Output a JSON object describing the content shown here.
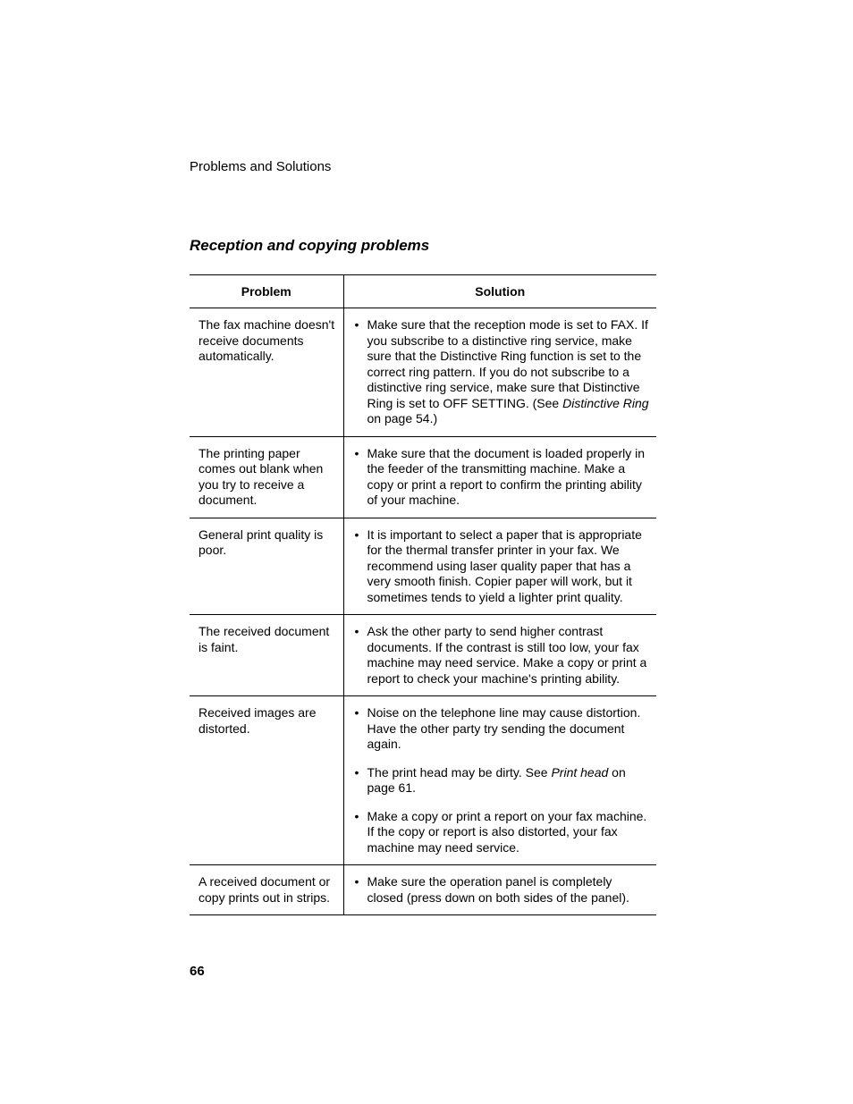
{
  "breadcrumb": "Problems and Solutions",
  "section_title": "Reception and copying problems",
  "page_number": "66",
  "table": {
    "headers": {
      "problem": "Problem",
      "solution": "Solution"
    },
    "rows": [
      {
        "problem": "The fax machine doesn't receive documents automatically.",
        "solutions": [
          {
            "segments": [
              {
                "text": "Make sure that the reception mode is set to FAX. If you subscribe to a distinctive ring service, make sure that the Distinctive Ring function is set to the correct ring pattern. If you do not subscribe to a distinctive ring service, make sure that Distinctive Ring is set to OFF SETTING. (See "
              },
              {
                "text": "Distinctive Ring",
                "italic": true
              },
              {
                "text": " on page 54.)"
              }
            ]
          }
        ]
      },
      {
        "problem": "The printing paper comes out blank when you try to receive a document.",
        "solutions": [
          {
            "segments": [
              {
                "text": "Make sure that the document is loaded properly in the feeder of the transmitting machine. Make a copy or print a report to confirm the printing ability of your machine."
              }
            ]
          }
        ]
      },
      {
        "problem": "General print quality is poor.",
        "solutions": [
          {
            "segments": [
              {
                "text": "It is important to select a paper that is appropriate for the thermal transfer printer in your fax. We recommend using laser quality paper that has a very smooth finish. Copier paper will work, but it sometimes tends to yield a lighter print quality."
              }
            ]
          }
        ]
      },
      {
        "problem": "The received document is faint.",
        "solutions": [
          {
            "segments": [
              {
                "text": "Ask the other party to send higher contrast documents. If the contrast is still too low, your fax machine may need service. Make a copy or print a report to check your machine's printing ability."
              }
            ]
          }
        ]
      },
      {
        "problem": "Received images are distorted.",
        "solutions": [
          {
            "segments": [
              {
                "text": "Noise on the telephone line may cause distortion. Have the other party try sending the document again."
              }
            ]
          },
          {
            "segments": [
              {
                "text": "The print head may be dirty. See "
              },
              {
                "text": "Print head",
                "italic": true
              },
              {
                "text": " on page 61."
              }
            ]
          },
          {
            "segments": [
              {
                "text": "Make a copy or print a report on your fax machine. If the copy or report is also distorted, your fax machine may need service."
              }
            ]
          }
        ]
      },
      {
        "problem": "A received document or copy prints out in strips.",
        "solutions": [
          {
            "segments": [
              {
                "text": "Make sure the operation panel is completely closed (press down on both sides of the panel)."
              }
            ]
          }
        ]
      }
    ]
  }
}
